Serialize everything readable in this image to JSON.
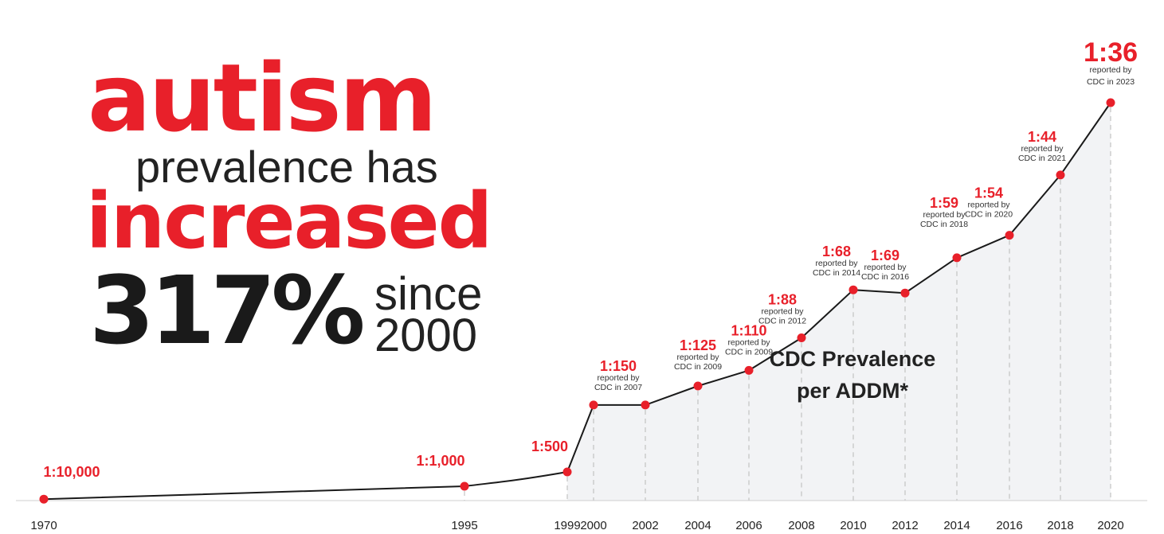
{
  "headline": {
    "word1": "autism",
    "line2": "prevalence has",
    "word3": "increased",
    "percent": "317%",
    "since_line1": "since",
    "since_line2": "2000"
  },
  "colors": {
    "accent": "#e8202a",
    "text": "#222222",
    "line": "#1a1a1a",
    "area_fill": "#f2f3f5",
    "guide": "#b8b8b8"
  },
  "chart_data": {
    "type": "area",
    "x": [
      1970,
      1995,
      1999,
      2000,
      2002,
      2004,
      2006,
      2008,
      2010,
      2012,
      2014,
      2016,
      2018,
      2020
    ],
    "series": [
      {
        "values": [
          0.0001,
          0.001,
          0.002,
          0.00667,
          0.00667,
          0.008,
          0.00909,
          0.01136,
          0.01471,
          0.01449,
          0.01695,
          0.01852,
          0.02273,
          0.02778
        ]
      }
    ],
    "point_labels": [
      "1:10,000",
      "1:1,000",
      "1:500",
      "1:150",
      "",
      "1:125",
      "1:110",
      "1:88",
      "1:68",
      "1:69",
      "1:59",
      "1:54",
      "1:44",
      "1:36"
    ],
    "point_notes": [
      [],
      [],
      [],
      [
        "reported by",
        "CDC in 2007"
      ],
      [],
      [
        "reported by",
        "CDC in 2009"
      ],
      [
        "reported by",
        "CDC in 2009"
      ],
      [
        "reported by",
        "CDC in 2012"
      ],
      [
        "reported by",
        "CDC in 2014"
      ],
      [
        "reported by",
        "CDC in 2016"
      ],
      [
        "reported by",
        "CDC in 2018"
      ],
      [
        "reported by",
        "CDC in 2020"
      ],
      [
        "reported by",
        "CDC in 2021"
      ],
      [
        "reported by",
        "CDC in 2023"
      ]
    ],
    "x_tick_labels": [
      "1970",
      "1995",
      "1999",
      "2000",
      "2002",
      "2004",
      "2006",
      "2008",
      "2010",
      "2012",
      "2014",
      "2016",
      "2018",
      "2020"
    ],
    "annotation": [
      "CDC Prevalence",
      "per ADDM*"
    ],
    "title": "",
    "xlabel": "",
    "ylabel": "",
    "grid": false,
    "legend": "none"
  }
}
